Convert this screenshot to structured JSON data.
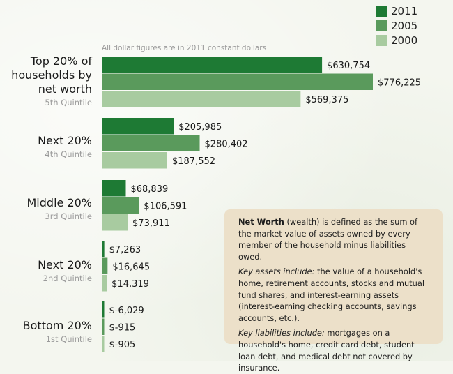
{
  "chart_data": {
    "type": "bar",
    "orientation": "horizontal",
    "note": "All dollar figures are in 2011 constant dollars",
    "categories": [
      {
        "label": "Top 20% of\nhouseholds by\nnet worth",
        "sublabel": "5th Quintile"
      },
      {
        "label": "Next 20%",
        "sublabel": "4th Quintile"
      },
      {
        "label": "Middle 20%",
        "sublabel": "3rd Quintile"
      },
      {
        "label": "Next 20%",
        "sublabel": "2nd Quintile"
      },
      {
        "label": "Bottom 20%",
        "sublabel": "1st Quintile"
      }
    ],
    "series": [
      {
        "name": "2011",
        "color": "#1e7a34",
        "values": [
          630754,
          205985,
          68839,
          7263,
          -6029
        ],
        "labels": [
          "$630,754",
          "$205,985",
          "$68,839",
          "$7,263",
          "$-6,029"
        ]
      },
      {
        "name": "2005",
        "color": "#5a9a5c",
        "values": [
          776225,
          280402,
          106591,
          16645,
          -915
        ],
        "labels": [
          "$776,225",
          "$280,402",
          "$106,591",
          "$16,645",
          "$-915"
        ]
      },
      {
        "name": "2000",
        "color": "#a8cba0",
        "values": [
          569375,
          187552,
          73911,
          14319,
          -905
        ],
        "labels": [
          "$569,375",
          "$187,552",
          "$73,911",
          "$14,319",
          "$-905"
        ]
      }
    ],
    "legend_position": "top-right"
  },
  "info_box": {
    "p1_bold": "Net Worth",
    "p1_rest": " (wealth) is defined as the sum of the market value of assets owned by every member of the household minus liabilities owed.",
    "p2_ital": "Key assets include:",
    "p2_rest": " the value of a household's home, retirement accounts, stocks and mutual fund shares, and interest-earning assets (interest-earning checking accounts, savings accounts, etc.).",
    "p3_ital": "Key liabilities include:",
    "p3_rest": " mortgages on a household's home, credit card debt, student loan debt, and medical debt not covered by insurance."
  }
}
